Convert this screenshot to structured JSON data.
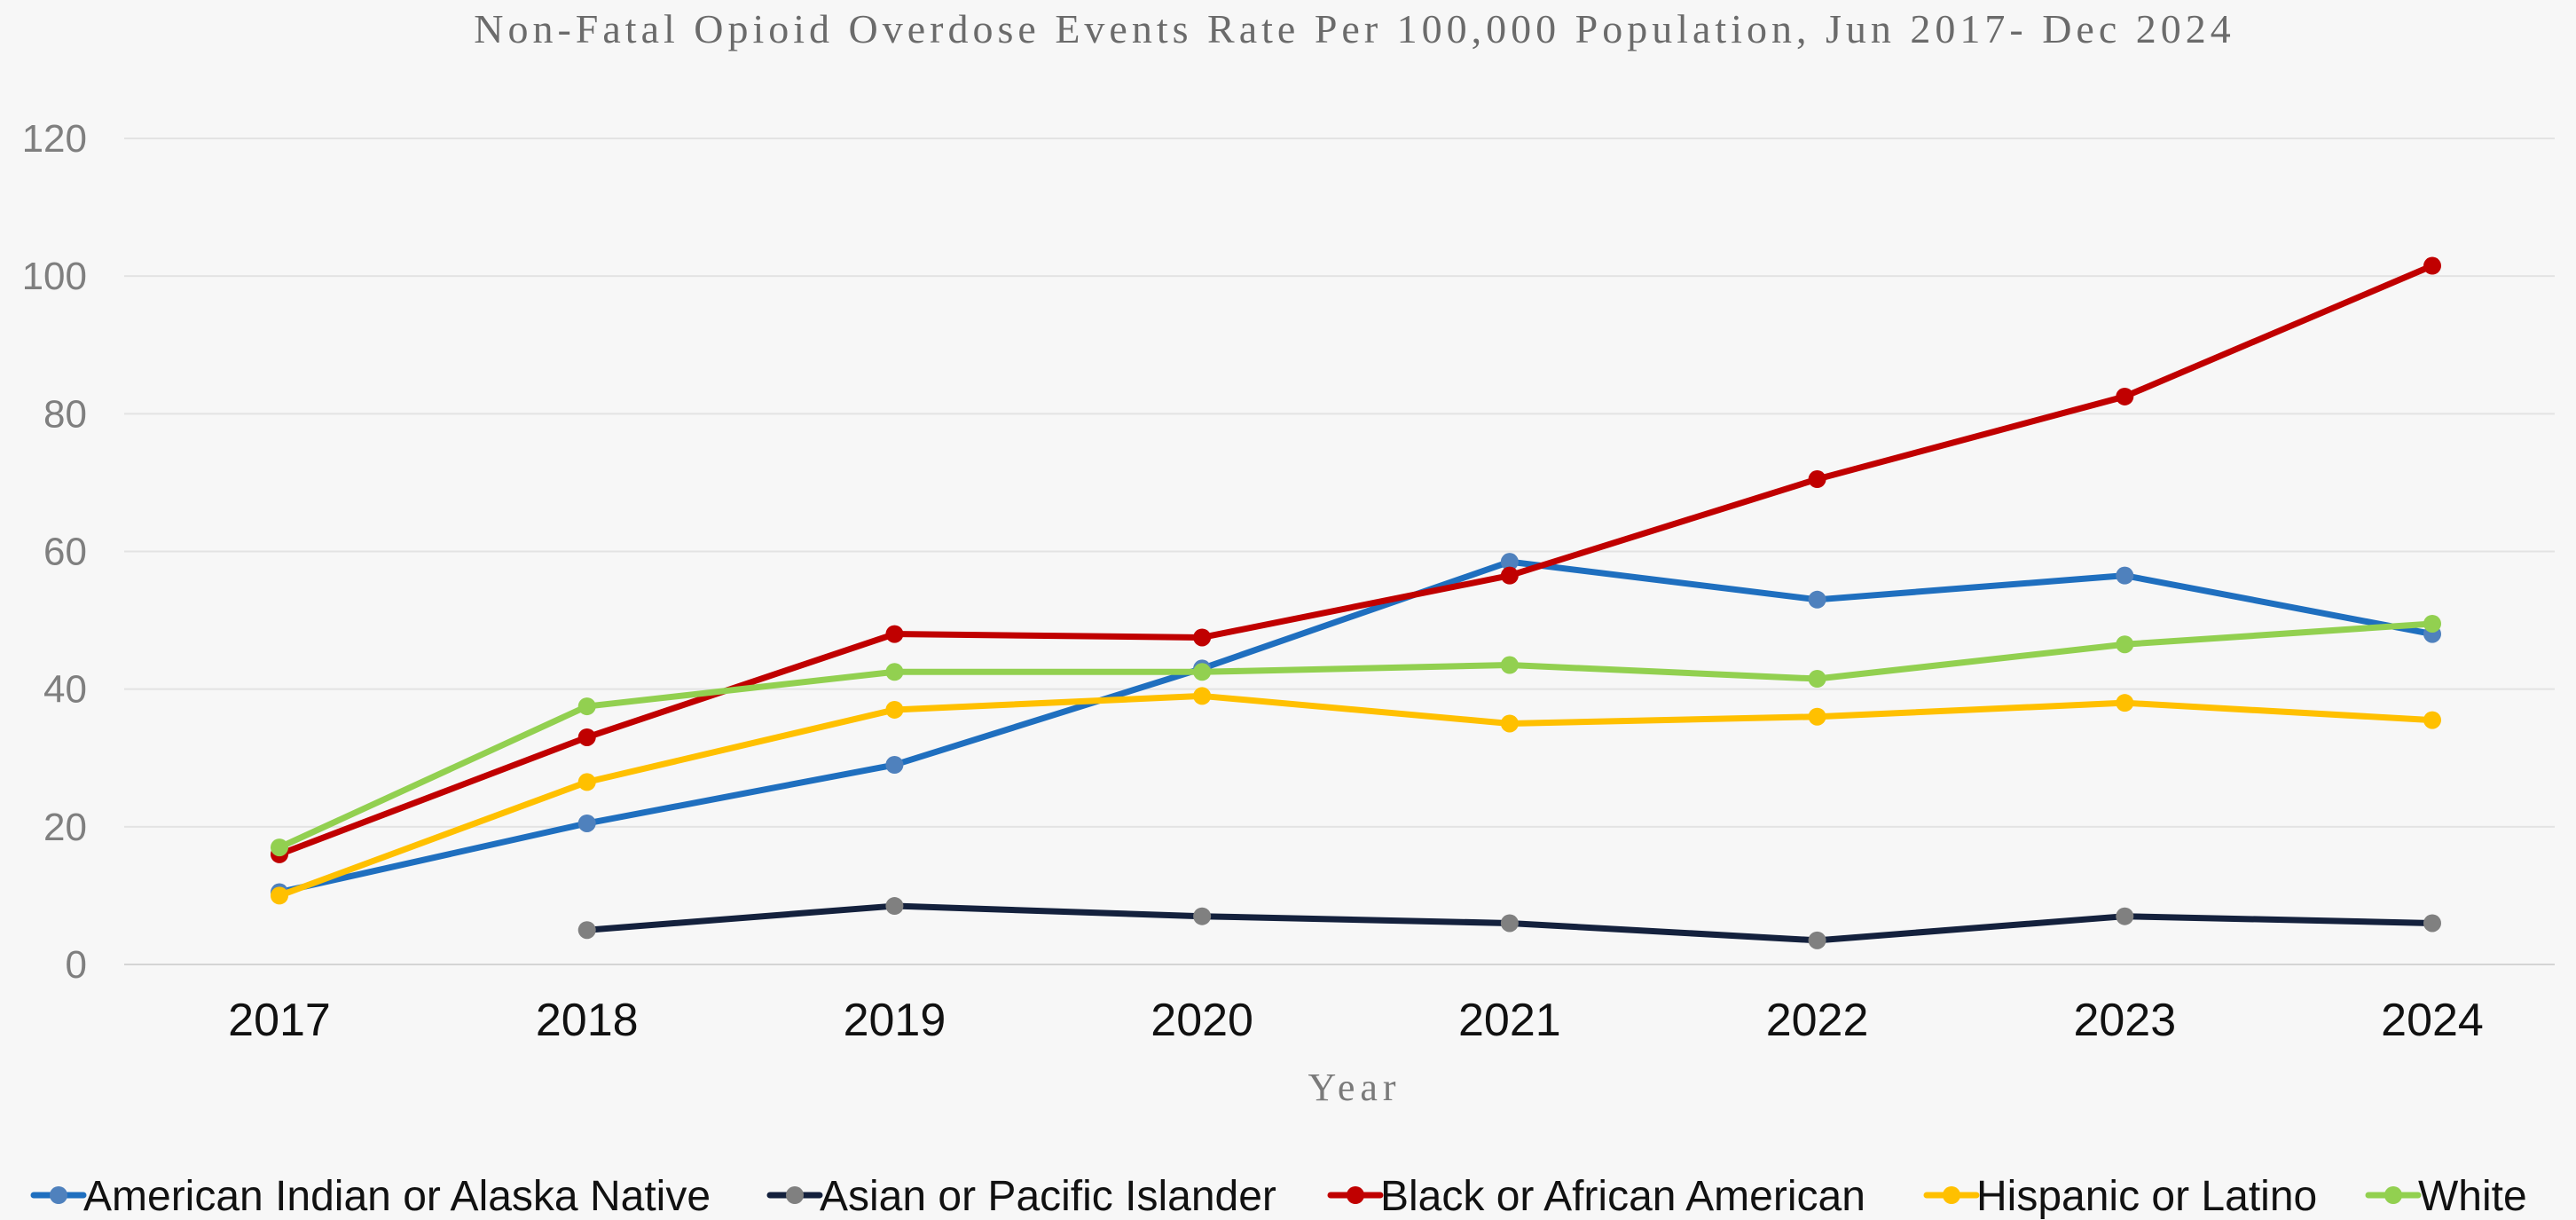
{
  "chart_data": {
    "type": "line",
    "title": "Non-Fatal Opioid Overdose Events Rate Per 100,000 Population, Jun 2017- Dec 2024",
    "xlabel": "Year",
    "ylabel": "",
    "categories": [
      "2017",
      "2018",
      "2019",
      "2020",
      "2021",
      "2022",
      "2023",
      "2024"
    ],
    "ylim": [
      0,
      120
    ],
    "yticks": [
      0,
      20,
      40,
      60,
      80,
      100,
      120
    ],
    "grid": true,
    "legend_position": "bottom",
    "series": [
      {
        "name": "American Indian or Alaska Native",
        "color": "#1f6fbf",
        "marker_color": "#4f81bd",
        "values": [
          10.5,
          20.5,
          29,
          43,
          58.5,
          53,
          56.5,
          48
        ]
      },
      {
        "name": "Asian or Pacific Islander",
        "color": "#14213d",
        "marker_color": "#808080",
        "values": [
          null,
          5,
          8.5,
          7,
          6,
          3.5,
          7,
          6
        ]
      },
      {
        "name": "Black or African American",
        "color": "#c00000",
        "marker_color": "#c00000",
        "values": [
          16,
          33,
          48,
          47.5,
          56.5,
          70.5,
          82.5,
          101.5
        ]
      },
      {
        "name": "Hispanic or Latino",
        "color": "#ffc000",
        "marker_color": "#ffc000",
        "values": [
          10,
          26.5,
          37,
          39,
          35,
          36,
          38,
          35.5
        ]
      },
      {
        "name": "White",
        "color": "#92d050",
        "marker_color": "#92d050",
        "values": [
          17,
          37.5,
          42.5,
          42.5,
          43.5,
          41.5,
          46.5,
          49.5
        ]
      }
    ]
  }
}
